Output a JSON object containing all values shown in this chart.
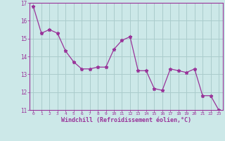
{
  "x": [
    0,
    1,
    2,
    3,
    4,
    5,
    6,
    7,
    8,
    9,
    10,
    11,
    12,
    13,
    14,
    15,
    16,
    17,
    18,
    19,
    20,
    21,
    22,
    23
  ],
  "y": [
    16.8,
    15.3,
    15.5,
    15.3,
    14.3,
    13.7,
    13.3,
    13.3,
    13.4,
    13.4,
    14.4,
    14.9,
    15.1,
    13.2,
    13.2,
    12.2,
    12.1,
    13.3,
    13.2,
    13.1,
    13.3,
    11.8,
    11.8,
    11.0
  ],
  "line_color": "#993399",
  "marker": "*",
  "bg_color": "#cce8e8",
  "grid_color": "#aacccc",
  "xlabel": "Windchill (Refroidissement éolien,°C)",
  "ylabel": "",
  "xlim": [
    -0.5,
    23.5
  ],
  "ylim": [
    11,
    17
  ],
  "yticks": [
    11,
    12,
    13,
    14,
    15,
    16,
    17
  ],
  "xticks": [
    0,
    1,
    2,
    3,
    4,
    5,
    6,
    7,
    8,
    9,
    10,
    11,
    12,
    13,
    14,
    15,
    16,
    17,
    18,
    19,
    20,
    21,
    22,
    23
  ],
  "axis_color": "#993399",
  "tick_color": "#993399",
  "label_color": "#993399"
}
